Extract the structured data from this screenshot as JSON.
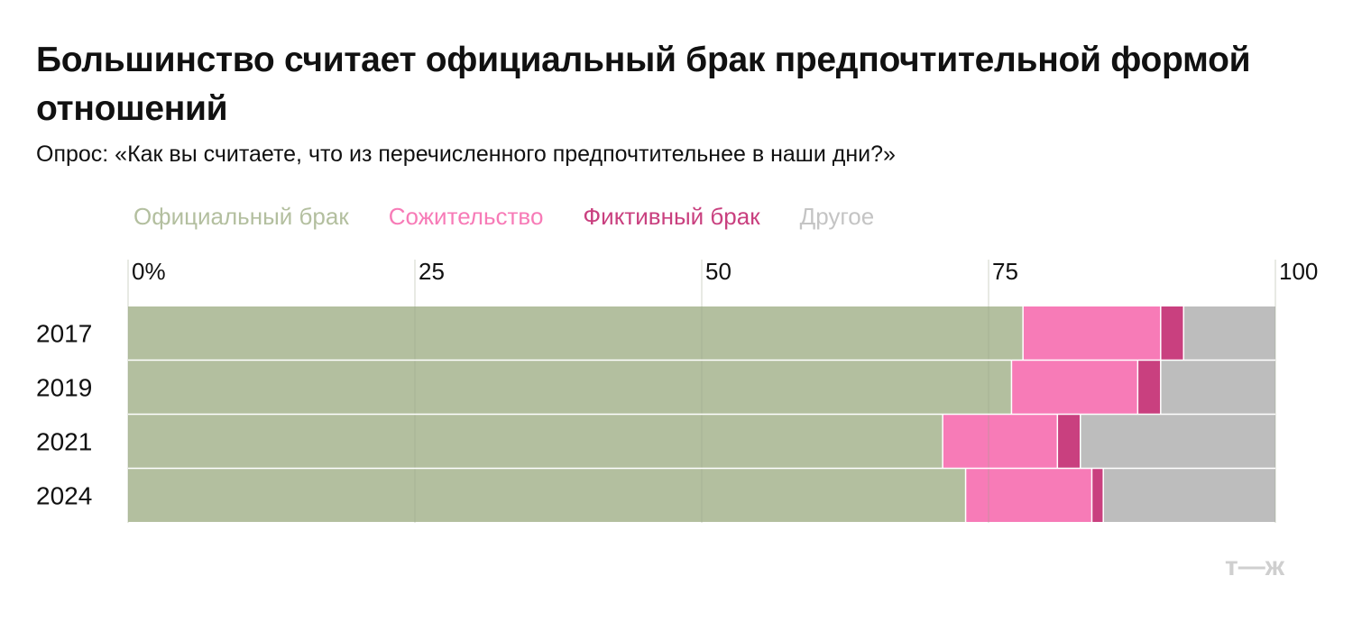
{
  "title": "Большинство считает официальный брак предпочтительной формой отношений",
  "subtitle": "Опрос: «Как вы считаете, что из перечисленного предпочтительнее в наши дни?»",
  "logo_text": "т—ж",
  "chart_data": {
    "type": "bar",
    "orientation": "horizontal",
    "stacked": true,
    "categories": [
      "2017",
      "2019",
      "2021",
      "2024"
    ],
    "series": [
      {
        "name": "Официальный брак",
        "color": "#b3bf9f",
        "values": [
          78,
          77,
          71,
          73
        ]
      },
      {
        "name": "Сожительство",
        "color": "#f77bb7",
        "values": [
          12,
          11,
          10,
          11
        ]
      },
      {
        "name": "Фиктивный брак",
        "color": "#c9407f",
        "values": [
          2,
          2,
          2,
          1
        ]
      },
      {
        "name": "Другое",
        "color": "#bdbdbd",
        "values": [
          8,
          10,
          17,
          15
        ]
      }
    ],
    "x_ticks": [
      "0%",
      "25",
      "50",
      "75",
      "100"
    ],
    "xlim": [
      0,
      100
    ],
    "grid": true,
    "legend_position": "top-left",
    "axis_position": "top"
  }
}
